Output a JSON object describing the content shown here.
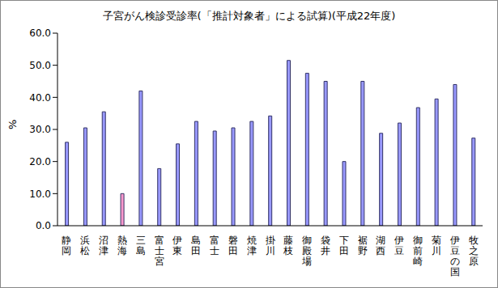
{
  "chart_data": {
    "type": "bar",
    "title": "子宮がん検診受診率(「推計対象者」による試算)(平成22年度)",
    "y_label": "%",
    "categories": [
      "静岡",
      "浜松",
      "沼津",
      "熱海",
      "三島",
      "富士宮",
      "伊東",
      "島田",
      "富士",
      "磐田",
      "焼津",
      "掛川",
      "藤枝",
      "御殿場",
      "袋井",
      "下田",
      "裾野",
      "湖西",
      "伊豆",
      "御前崎",
      "菊川",
      "伊豆の国",
      "牧之原"
    ],
    "values": [
      26.0,
      30.5,
      35.5,
      10.0,
      42.0,
      17.8,
      25.5,
      32.5,
      29.5,
      30.5,
      32.5,
      34.2,
      51.5,
      47.5,
      45.0,
      20.0,
      45.0,
      28.8,
      32.0,
      36.8,
      39.5,
      44.0,
      27.3
    ],
    "colors": [
      "#9999ff",
      "#9999ff",
      "#9999ff",
      "#ff99cc",
      "#9999ff",
      "#9999ff",
      "#9999ff",
      "#9999ff",
      "#9999ff",
      "#9999ff",
      "#9999ff",
      "#9999ff",
      "#9999ff",
      "#9999ff",
      "#9999ff",
      "#9999ff",
      "#9999ff",
      "#9999ff",
      "#9999ff",
      "#9999ff",
      "#9999ff",
      "#9999ff",
      "#9999ff"
    ],
    "ylim": [
      0,
      60
    ],
    "yticks": [
      {
        "value": 0,
        "label": "0.0"
      },
      {
        "value": 10,
        "label": "10.0"
      },
      {
        "value": 20,
        "label": "20.0"
      },
      {
        "value": 30,
        "label": "30.0"
      },
      {
        "value": 40,
        "label": "40.0"
      },
      {
        "value": 50,
        "label": "50.0"
      },
      {
        "value": 60,
        "label": "60.0"
      }
    ],
    "grid": false
  }
}
